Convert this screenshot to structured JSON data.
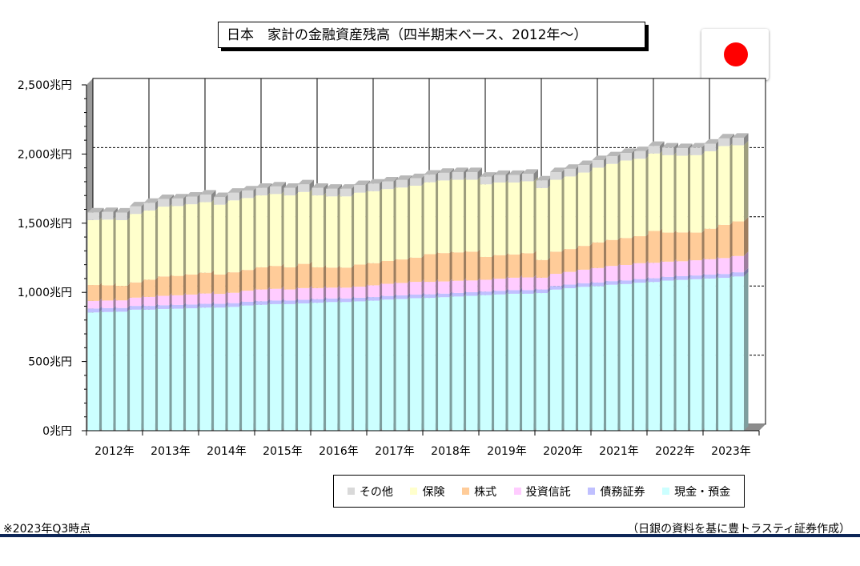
{
  "title": "日本　家計の金融資産残高（四半期末ベース、2012年～）",
  "chart_data": {
    "type": "bar",
    "stacked": true,
    "title": "日本　家計の金融資産残高（四半期末ベース、2012年～）",
    "xlabel": "",
    "ylabel": "",
    "ylim": [
      0,
      2500
    ],
    "yticks": [
      "0兆円",
      "500兆円",
      "1,000兆円",
      "1,500兆円",
      "2,000兆円",
      "2,500兆円"
    ],
    "year_labels": [
      "2012年",
      "2013年",
      "2014年",
      "2015年",
      "2016年",
      "2017年",
      "2018年",
      "2019年",
      "2020年",
      "2021年",
      "2022年",
      "2023年"
    ],
    "categories": [
      "2012Q1",
      "2012Q2",
      "2012Q3",
      "2012Q4",
      "2013Q1",
      "2013Q2",
      "2013Q3",
      "2013Q4",
      "2014Q1",
      "2014Q2",
      "2014Q3",
      "2014Q4",
      "2015Q1",
      "2015Q2",
      "2015Q3",
      "2015Q4",
      "2016Q1",
      "2016Q2",
      "2016Q3",
      "2016Q4",
      "2017Q1",
      "2017Q2",
      "2017Q3",
      "2017Q4",
      "2018Q1",
      "2018Q2",
      "2018Q3",
      "2018Q4",
      "2019Q1",
      "2019Q2",
      "2019Q3",
      "2019Q4",
      "2020Q1",
      "2020Q2",
      "2020Q3",
      "2020Q4",
      "2021Q1",
      "2021Q2",
      "2021Q3",
      "2021Q4",
      "2022Q1",
      "2022Q2",
      "2022Q3",
      "2022Q4",
      "2023Q1",
      "2023Q2",
      "2023Q3"
    ],
    "series": [
      {
        "name": "現金・預金",
        "color": "#ccffff",
        "values": [
          855,
          858,
          860,
          875,
          875,
          880,
          882,
          885,
          890,
          890,
          895,
          905,
          910,
          915,
          915,
          920,
          925,
          930,
          930,
          935,
          940,
          948,
          952,
          958,
          960,
          965,
          970,
          975,
          980,
          985,
          990,
          990,
          995,
          1020,
          1030,
          1040,
          1045,
          1055,
          1060,
          1070,
          1075,
          1085,
          1090,
          1095,
          1100,
          1105,
          1115
        ]
      },
      {
        "name": "債務証券",
        "color": "#c0c0ff",
        "values": [
          28,
          28,
          27,
          27,
          27,
          27,
          27,
          27,
          27,
          27,
          27,
          27,
          26,
          26,
          26,
          26,
          26,
          26,
          26,
          26,
          26,
          26,
          26,
          26,
          26,
          26,
          26,
          26,
          26,
          26,
          26,
          26,
          26,
          26,
          26,
          26,
          26,
          26,
          26,
          26,
          27,
          27,
          27,
          27,
          28,
          28,
          30
        ]
      },
      {
        "name": "投資信託",
        "color": "#ffccff",
        "values": [
          55,
          55,
          55,
          60,
          65,
          68,
          70,
          72,
          75,
          72,
          75,
          80,
          85,
          85,
          80,
          85,
          80,
          78,
          78,
          80,
          85,
          88,
          90,
          92,
          90,
          88,
          88,
          85,
          85,
          88,
          90,
          92,
          85,
          88,
          92,
          98,
          105,
          110,
          112,
          115,
          112,
          110,
          108,
          110,
          112,
          115,
          118
        ]
      },
      {
        "name": "株式",
        "color": "#ffcc99",
        "values": [
          115,
          110,
          105,
          110,
          125,
          140,
          140,
          145,
          150,
          140,
          148,
          150,
          160,
          165,
          160,
          175,
          150,
          145,
          145,
          160,
          160,
          165,
          170,
          175,
          200,
          205,
          205,
          208,
          165,
          170,
          168,
          175,
          128,
          160,
          165,
          172,
          185,
          188,
          195,
          195,
          230,
          210,
          208,
          200,
          220,
          240,
          250
        ]
      },
      {
        "name": "保険",
        "color": "#ffffcc",
        "values": [
          470,
          475,
          475,
          495,
          500,
          505,
          505,
          508,
          510,
          505,
          520,
          520,
          520,
          520,
          520,
          520,
          520,
          515,
          515,
          520,
          520,
          520,
          520,
          520,
          520,
          525,
          525,
          520,
          525,
          525,
          520,
          520,
          520,
          520,
          525,
          530,
          540,
          550,
          560,
          560,
          560,
          560,
          555,
          560,
          560,
          570,
          550
        ]
      },
      {
        "name": "その他",
        "color": "#d9d9d9",
        "values": [
          55,
          55,
          55,
          55,
          55,
          55,
          55,
          55,
          55,
          55,
          55,
          55,
          55,
          55,
          55,
          55,
          55,
          55,
          55,
          55,
          55,
          55,
          55,
          55,
          55,
          55,
          55,
          55,
          55,
          55,
          55,
          55,
          55,
          55,
          55,
          55,
          55,
          55,
          55,
          55,
          55,
          55,
          55,
          55,
          55,
          55,
          55
        ]
      }
    ]
  },
  "legend": {
    "items": [
      {
        "label": "その他",
        "color": "#d9d9d9"
      },
      {
        "label": "保険",
        "color": "#ffffcc"
      },
      {
        "label": "株式",
        "color": "#ffcc99"
      },
      {
        "label": "投資信託",
        "color": "#ffccff"
      },
      {
        "label": "債務証券",
        "color": "#c0c0ff"
      },
      {
        "label": "現金・預金",
        "color": "#ccffff"
      }
    ]
  },
  "footnote": "※2023年Q3時点",
  "source": "（日銀の資料を基に豊トラスティ証券作成）"
}
